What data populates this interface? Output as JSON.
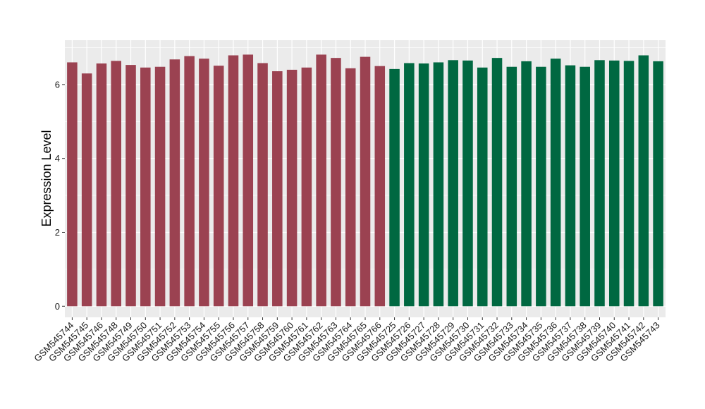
{
  "chart_data": {
    "type": "bar",
    "title": "",
    "xlabel": "",
    "ylabel": "Expression Level",
    "ylim": [
      -0.3,
      7.2
    ],
    "yticks": [
      0,
      2,
      4,
      6
    ],
    "grid": true,
    "legend": "none",
    "panel_background": "#ebebeb",
    "grid_color": "#ffffff",
    "categories": [
      "GSM545744",
      "GSM545745",
      "GSM545746",
      "GSM545748",
      "GSM545749",
      "GSM545750",
      "GSM545751",
      "GSM545752",
      "GSM545753",
      "GSM545754",
      "GSM545755",
      "GSM545756",
      "GSM545757",
      "GSM545758",
      "GSM545759",
      "GSM545760",
      "GSM545761",
      "GSM545762",
      "GSM545763",
      "GSM545764",
      "GSM545765",
      "GSM545766",
      "GSM545725",
      "GSM545726",
      "GSM545727",
      "GSM545728",
      "GSM545729",
      "GSM545730",
      "GSM545731",
      "GSM545732",
      "GSM545733",
      "GSM545734",
      "GSM545735",
      "GSM545736",
      "GSM545737",
      "GSM545738",
      "GSM545739",
      "GSM545740",
      "GSM545741",
      "GSM545742",
      "GSM545743"
    ],
    "values": [
      6.6,
      6.3,
      6.57,
      6.64,
      6.53,
      6.46,
      6.48,
      6.68,
      6.77,
      6.7,
      6.51,
      6.79,
      6.81,
      6.58,
      6.36,
      6.4,
      6.46,
      6.81,
      6.72,
      6.44,
      6.75,
      6.5,
      6.42,
      6.58,
      6.57,
      6.6,
      6.66,
      6.65,
      6.46,
      6.72,
      6.48,
      6.63,
      6.48,
      6.7,
      6.52,
      6.48,
      6.66,
      6.65,
      6.64,
      6.79,
      6.63
    ],
    "groups": [
      {
        "count": 22,
        "color": "#9b4251"
      },
      {
        "count": 19,
        "color": "#006841"
      }
    ]
  }
}
